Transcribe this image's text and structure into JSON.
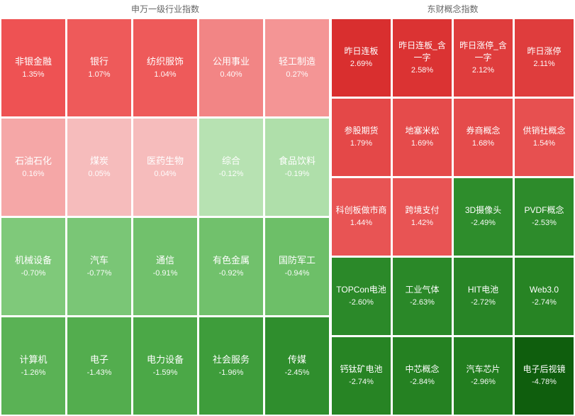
{
  "left": {
    "title": "申万一级行业指数",
    "cells": [
      {
        "name": "非银金融",
        "value": "1.35%",
        "color": "#ee5253"
      },
      {
        "name": "银行",
        "value": "1.07%",
        "color": "#ee5a5a"
      },
      {
        "name": "纺织服饰",
        "value": "1.04%",
        "color": "#ee5a5a"
      },
      {
        "name": "公用事业",
        "value": "0.40%",
        "color": "#f28585"
      },
      {
        "name": "轻工制造",
        "value": "0.27%",
        "color": "#f49595"
      },
      {
        "name": "石油石化",
        "value": "0.16%",
        "color": "#f5a7a7"
      },
      {
        "name": "煤炭",
        "value": "0.05%",
        "color": "#f6bcbc"
      },
      {
        "name": "医药生物",
        "value": "0.04%",
        "color": "#f6bcbc"
      },
      {
        "name": "综合",
        "value": "-0.12%",
        "color": "#b7e2b2"
      },
      {
        "name": "食品饮料",
        "value": "-0.19%",
        "color": "#afdfaa"
      },
      {
        "name": "机械设备",
        "value": "-0.70%",
        "color": "#7fc97a"
      },
      {
        "name": "汽车",
        "value": "-0.77%",
        "color": "#7ac676"
      },
      {
        "name": "通信",
        "value": "-0.91%",
        "color": "#71c16c"
      },
      {
        "name": "有色金属",
        "value": "-0.92%",
        "color": "#71c16c"
      },
      {
        "name": "国防军工",
        "value": "-0.94%",
        "color": "#6dbf68"
      },
      {
        "name": "计算机",
        "value": "-1.26%",
        "color": "#5ab255"
      },
      {
        "name": "电子",
        "value": "-1.43%",
        "color": "#53ad4e"
      },
      {
        "name": "电力设备",
        "value": "-1.59%",
        "color": "#4ba847"
      },
      {
        "name": "社会服务",
        "value": "-1.96%",
        "color": "#3e9d3b"
      },
      {
        "name": "传媒",
        "value": "-2.45%",
        "color": "#2f8e2d"
      }
    ]
  },
  "right": {
    "title": "东财概念指数",
    "cells": [
      {
        "name": "昨日连板",
        "value": "2.69%",
        "color": "#d92f2f"
      },
      {
        "name": "昨日连板_含一字",
        "value": "2.58%",
        "color": "#db3333"
      },
      {
        "name": "昨日涨停_含一字",
        "value": "2.12%",
        "color": "#df3d3d"
      },
      {
        "name": "昨日涨停",
        "value": "2.11%",
        "color": "#df3d3d"
      },
      {
        "name": "参股期货",
        "value": "1.79%",
        "color": "#e44848"
      },
      {
        "name": "地塞米松",
        "value": "1.69%",
        "color": "#e54b4b"
      },
      {
        "name": "券商概念",
        "value": "1.68%",
        "color": "#e54b4b"
      },
      {
        "name": "供销社概念",
        "value": "1.54%",
        "color": "#e75050"
      },
      {
        "name": "科创板做市商",
        "value": "1.44%",
        "color": "#e85454"
      },
      {
        "name": "跨境支付",
        "value": "1.42%",
        "color": "#e85454"
      },
      {
        "name": "3D摄像头",
        "value": "-2.49%",
        "color": "#2e8d2c"
      },
      {
        "name": "PVDF概念",
        "value": "-2.53%",
        "color": "#2d8b2b"
      },
      {
        "name": "TOPCon电池",
        "value": "-2.60%",
        "color": "#2b8929"
      },
      {
        "name": "工业气体",
        "value": "-2.63%",
        "color": "#2a8828"
      },
      {
        "name": "HIT电池",
        "value": "-2.72%",
        "color": "#288526"
      },
      {
        "name": "Web3.0",
        "value": "-2.74%",
        "color": "#278424"
      },
      {
        "name": "钙钛矿电池",
        "value": "-2.74%",
        "color": "#278424"
      },
      {
        "name": "中芯概念",
        "value": "-2.84%",
        "color": "#258122"
      },
      {
        "name": "汽车芯片",
        "value": "-2.96%",
        "color": "#227e1f"
      },
      {
        "name": "电子后视镜",
        "value": "-4.78%",
        "color": "#0f5e0d"
      }
    ]
  }
}
